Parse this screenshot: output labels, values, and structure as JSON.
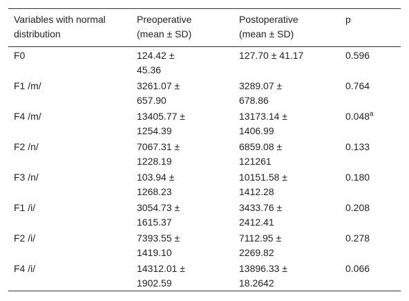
{
  "table": {
    "header": [
      [
        "Variables with normal",
        "distribution"
      ],
      [
        "Preoperative",
        "(mean ± SD)"
      ],
      [
        "Postoperative",
        "(mean ± SD)"
      ],
      [
        "p"
      ]
    ],
    "rows": [
      [
        [
          "F0"
        ],
        [
          "124.42 ±",
          "45.36"
        ],
        [
          "127.70 ± 41.17"
        ],
        [
          "0.596"
        ]
      ],
      [
        [
          "F1 /m/"
        ],
        [
          "3261.07 ±",
          "657.90"
        ],
        [
          "3289.07 ±",
          "678.86"
        ],
        [
          "0.764"
        ]
      ],
      [
        [
          "F4 /m/"
        ],
        [
          "13405.77 ±",
          "1254.39"
        ],
        [
          "13173.14 ±",
          "1406.99"
        ],
        [
          {
            "text": "0.048",
            "sup": "a"
          }
        ]
      ],
      [
        [
          "F2 /n/"
        ],
        [
          "7067.31 ±",
          "1228.19"
        ],
        [
          "6859.08 ±",
          "121261"
        ],
        [
          "0.133"
        ]
      ],
      [
        [
          "F3 /n/"
        ],
        [
          "103.94 ±",
          "1268.23"
        ],
        [
          "10151.58 ±",
          "1412.28"
        ],
        [
          "0.180"
        ]
      ],
      [
        [
          "F1 /i/"
        ],
        [
          "3054.73 ±",
          "1615.37"
        ],
        [
          "3433.76 ±",
          "2412.41"
        ],
        [
          "0.208"
        ]
      ],
      [
        [
          "F2 /i/"
        ],
        [
          "7393.55 ±",
          "1419.10"
        ],
        [
          "7112.95 ±",
          "2269.82"
        ],
        [
          "0.278"
        ]
      ],
      [
        [
          "F4 /i/"
        ],
        [
          "14312.01 ±",
          "1902.59"
        ],
        [
          "13896.33 ±",
          "18.2642"
        ],
        [
          "0.066"
        ]
      ]
    ]
  }
}
